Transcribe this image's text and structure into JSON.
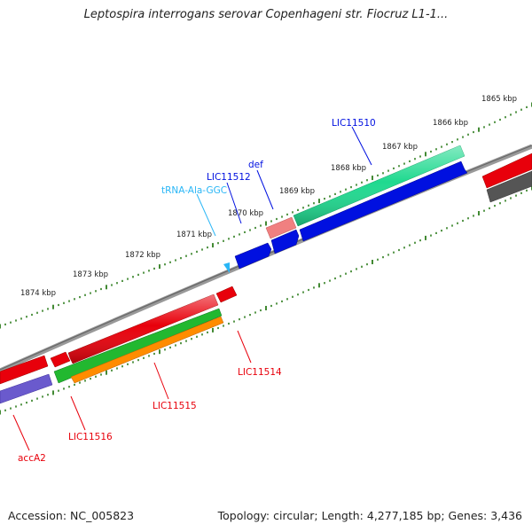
{
  "title": "Leptospira interrogans serovar Copenhageni str. Fiocruz L1-1...",
  "footer": {
    "accession": "Accession: NC_005823",
    "stats": "Topology: circular; Length: 4,277,185 bp; Genes: 3,436"
  },
  "colors": {
    "backbone": "#8a8a8a",
    "scale_ticks": "#2e7d1e",
    "red_gene": "#e8000b",
    "blue_gene": "#0010e0",
    "green_gene": "#22b830",
    "orange_gene": "#ff8c00",
    "teal_gene": "#1fd98f",
    "purple_gene": "#6a5acd",
    "gray_gene": "#555555",
    "pink_gene": "#f08080",
    "cyan_gene": "#29b6f6"
  },
  "scale_labels": [
    "1865 kbp",
    "1866 kbp",
    "1867 kbp",
    "1868 kbp",
    "1869 kbp",
    "1870 kbp",
    "1871 kbp",
    "1872 kbp",
    "1873 kbp",
    "1874 kbp"
  ],
  "gene_labels": {
    "lic11510": "LIC11510",
    "def": "def",
    "lic11512": "LIC11512",
    "trna": "tRNA-Ala-GGC",
    "lic11514": "LIC11514",
    "lic11515": "LIC11515",
    "lic11516": "LIC11516",
    "acca2": "accA2"
  }
}
